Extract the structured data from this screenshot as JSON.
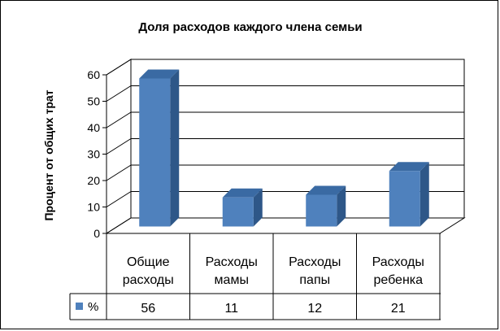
{
  "chart_data": {
    "type": "bar",
    "title": "Доля расходов каждого члена семьи",
    "ylabel": "Процент от общих трат",
    "xlabel": "",
    "categories": [
      [
        "Общие",
        "расходы"
      ],
      [
        "Расходы",
        "мамы"
      ],
      [
        "Расходы",
        "папы"
      ],
      [
        "Расходы",
        "ребенка"
      ]
    ],
    "series": [
      {
        "name": "%",
        "values": [
          56,
          11,
          12,
          21
        ],
        "color": "#4f81bd"
      }
    ],
    "ylim": [
      0,
      60
    ],
    "yticks": [
      0,
      10,
      20,
      30,
      40,
      50,
      60
    ],
    "grid": true,
    "style": "3d-column",
    "data_table": true
  }
}
